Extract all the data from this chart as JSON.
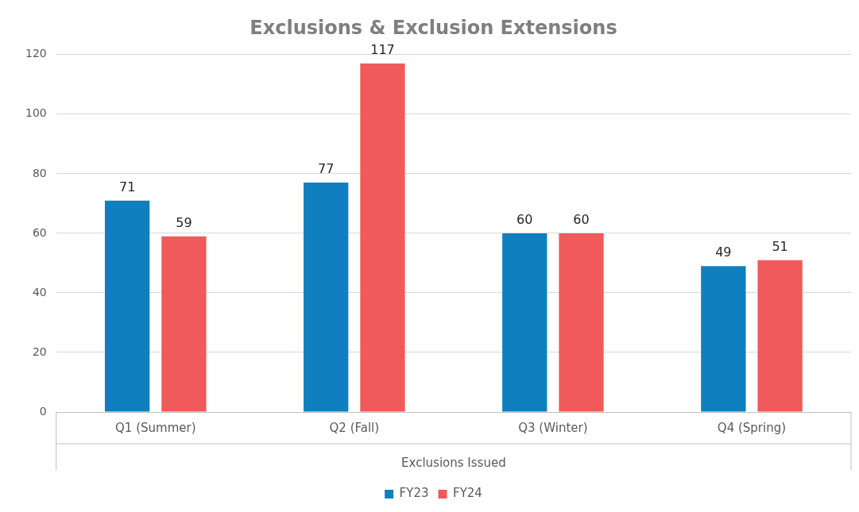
{
  "chart_data": {
    "type": "bar",
    "title": "Exclusions & Exclusion Extensions",
    "xlabel": "Exclusions Issued",
    "categories": [
      "Q1 (Summer)",
      "Q2 (Fall)",
      "Q3 (Winter)",
      "Q4 (Spring)"
    ],
    "series": [
      {
        "name": "FY23",
        "color": "#0f7fc0",
        "values": [
          71,
          77,
          60,
          49
        ]
      },
      {
        "name": "FY24",
        "color": "#f05a5a",
        "values": [
          59,
          117,
          60,
          51
        ]
      }
    ],
    "ylim": [
      0,
      120
    ],
    "yticks": [
      0,
      20,
      40,
      60,
      80,
      100,
      120
    ],
    "grid": "y",
    "legend": "bottom",
    "data_labels": true
  }
}
